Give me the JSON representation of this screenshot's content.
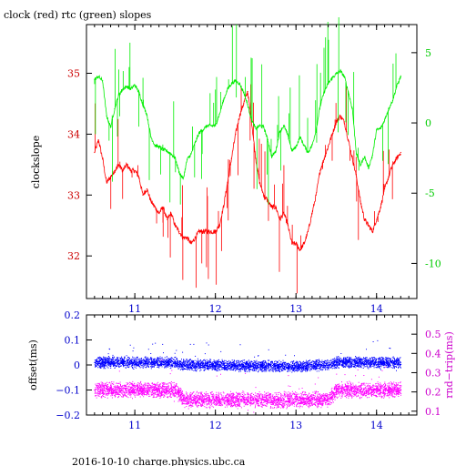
{
  "title": "clock (red) rtc (green) slopes",
  "footer": "2016-10-10 charge.physics.ubc.ca",
  "colors": {
    "clock": "#ff0000",
    "rtc": "#00ee00",
    "offset": "#0000ff",
    "rnd_trip": "#ff00ff",
    "frame": "#000000",
    "right_axis_top": "#00cc00",
    "left_axis_bottom": "#0000cc",
    "right_axis_bottom": "#cc00cc",
    "left_axis_top": "#cc0000"
  },
  "chart_data": [
    {
      "type": "line",
      "title": "clock (red) rtc (green) slopes",
      "ylabel": "clockslope",
      "xlim": [
        10.4,
        14.5
      ],
      "ylim": [
        31.3,
        35.8
      ],
      "y2lim": [
        -12.5,
        7.0
      ],
      "x_ticks": [
        11,
        12,
        13,
        14
      ],
      "y_ticks": [
        32,
        33,
        34,
        35
      ],
      "y2_ticks": [
        -10,
        -5,
        0,
        5
      ],
      "grid": false,
      "series": [
        {
          "name": "clock",
          "axis": "left",
          "x": [
            10.5,
            10.55,
            10.6,
            10.65,
            10.7,
            10.75,
            10.8,
            10.85,
            10.9,
            10.95,
            11.0,
            11.05,
            11.1,
            11.15,
            11.2,
            11.25,
            11.3,
            11.35,
            11.4,
            11.45,
            11.5,
            11.55,
            11.6,
            11.65,
            11.7,
            11.8,
            11.9,
            12.0,
            12.05,
            12.1,
            12.15,
            12.2,
            12.25,
            12.3,
            12.35,
            12.4,
            12.45,
            12.5,
            12.55,
            12.6,
            12.65,
            12.7,
            12.75,
            12.8,
            12.85,
            12.9,
            12.95,
            13.0,
            13.05,
            13.1,
            13.15,
            13.2,
            13.25,
            13.3,
            13.35,
            13.4,
            13.45,
            13.5,
            13.55,
            13.6,
            13.65,
            13.7,
            13.75,
            13.8,
            13.85,
            13.9,
            13.95,
            14.0,
            14.05,
            14.1,
            14.15,
            14.2,
            14.25,
            14.3
          ],
          "values": [
            33.7,
            33.9,
            33.6,
            33.2,
            33.3,
            33.4,
            33.5,
            33.4,
            33.5,
            33.4,
            33.4,
            33.3,
            33.0,
            33.1,
            32.9,
            32.8,
            32.7,
            32.8,
            32.6,
            32.7,
            32.5,
            32.4,
            32.3,
            32.3,
            32.2,
            32.4,
            32.4,
            32.4,
            32.5,
            32.8,
            33.2,
            33.6,
            34.0,
            34.3,
            34.5,
            34.7,
            34.2,
            33.6,
            33.2,
            33.0,
            32.9,
            32.8,
            32.8,
            32.6,
            32.7,
            32.5,
            32.2,
            32.2,
            32.1,
            32.2,
            32.4,
            32.7,
            33.0,
            33.4,
            33.6,
            33.8,
            34.0,
            34.2,
            34.3,
            34.2,
            33.9,
            33.6,
            33.3,
            32.9,
            32.6,
            32.5,
            32.4,
            32.6,
            32.8,
            33.1,
            33.3,
            33.5,
            33.6,
            33.7
          ]
        },
        {
          "name": "rtc",
          "axis": "right",
          "x": [
            10.5,
            10.55,
            10.6,
            10.65,
            10.7,
            10.75,
            10.8,
            10.85,
            10.9,
            10.95,
            11.0,
            11.05,
            11.1,
            11.15,
            11.2,
            11.25,
            11.3,
            11.35,
            11.4,
            11.45,
            11.5,
            11.55,
            11.6,
            11.65,
            11.7,
            11.75,
            11.8,
            11.9,
            12.0,
            12.05,
            12.1,
            12.15,
            12.2,
            12.25,
            12.3,
            12.35,
            12.4,
            12.45,
            12.5,
            12.55,
            12.6,
            12.65,
            12.7,
            12.75,
            12.8,
            12.85,
            12.9,
            12.95,
            13.0,
            13.05,
            13.1,
            13.15,
            13.2,
            13.25,
            13.3,
            13.35,
            13.4,
            13.45,
            13.5,
            13.55,
            13.6,
            13.65,
            13.7,
            13.75,
            13.8,
            13.85,
            13.9,
            13.95,
            14.0,
            14.05,
            14.1,
            14.15,
            14.2,
            14.25,
            14.3
          ],
          "values": [
            3.1,
            3.3,
            3.0,
            0.5,
            -0.3,
            1.0,
            2.0,
            2.4,
            2.6,
            2.4,
            2.7,
            2.2,
            1.3,
            0.6,
            -1.0,
            -1.6,
            -1.7,
            -1.9,
            -2.0,
            -2.2,
            -2.5,
            -3.5,
            -4.0,
            -2.6,
            -2.2,
            -1.4,
            -0.7,
            -0.2,
            -0.2,
            0.6,
            1.6,
            2.4,
            2.8,
            3.0,
            2.8,
            2.2,
            1.3,
            0.2,
            -0.4,
            -0.2,
            -0.3,
            -1.2,
            -2.4,
            -2.0,
            -0.6,
            -0.2,
            -0.9,
            -2.0,
            -1.7,
            -1.0,
            -1.6,
            -2.1,
            -1.6,
            -0.5,
            1.2,
            2.2,
            2.8,
            3.2,
            3.5,
            3.7,
            3.3,
            2.2,
            1.0,
            -2.2,
            -3.0,
            -2.4,
            -3.2,
            -2.3,
            -0.5,
            -0.4,
            0.2,
            1.0,
            1.6,
            2.6,
            3.3
          ]
        }
      ]
    },
    {
      "type": "scatter",
      "xlim": [
        10.4,
        14.5
      ],
      "ylim": [
        -0.2,
        0.2
      ],
      "y2lim": [
        0.08,
        0.6
      ],
      "ylabel": "offset(ms)",
      "y2label": "rnd−trip(ms)",
      "x_ticks": [
        11,
        12,
        13,
        14
      ],
      "y_ticks": [
        -0.2,
        -0.1,
        0,
        0.1,
        0.2
      ],
      "y_tick_labels": [
        "−0.2",
        "−0.1",
        "0",
        "0.1",
        "0.2"
      ],
      "y2_ticks": [
        0.1,
        0.2,
        0.3,
        0.4,
        0.5
      ],
      "grid": false,
      "series": [
        {
          "axis": "left",
          "x": [
            10.5,
            11.0,
            11.5,
            11.6,
            12.0,
            12.5,
            13.0,
            13.4,
            13.5,
            13.6,
            14.0,
            14.3
          ],
          "values": [
            0.01,
            0.01,
            0.01,
            0.0,
            0.0,
            -0.005,
            -0.005,
            0.0,
            0.01,
            0.01,
            0.01,
            0.01
          ]
        },
        {
          "axis": "right",
          "x": [
            10.5,
            11.0,
            11.5,
            11.6,
            12.0,
            12.5,
            13.0,
            13.4,
            13.5,
            13.6,
            14.0,
            14.3
          ],
          "values": [
            0.21,
            0.21,
            0.21,
            0.16,
            0.16,
            0.16,
            0.16,
            0.16,
            0.21,
            0.21,
            0.21,
            0.21
          ]
        }
      ]
    }
  ]
}
